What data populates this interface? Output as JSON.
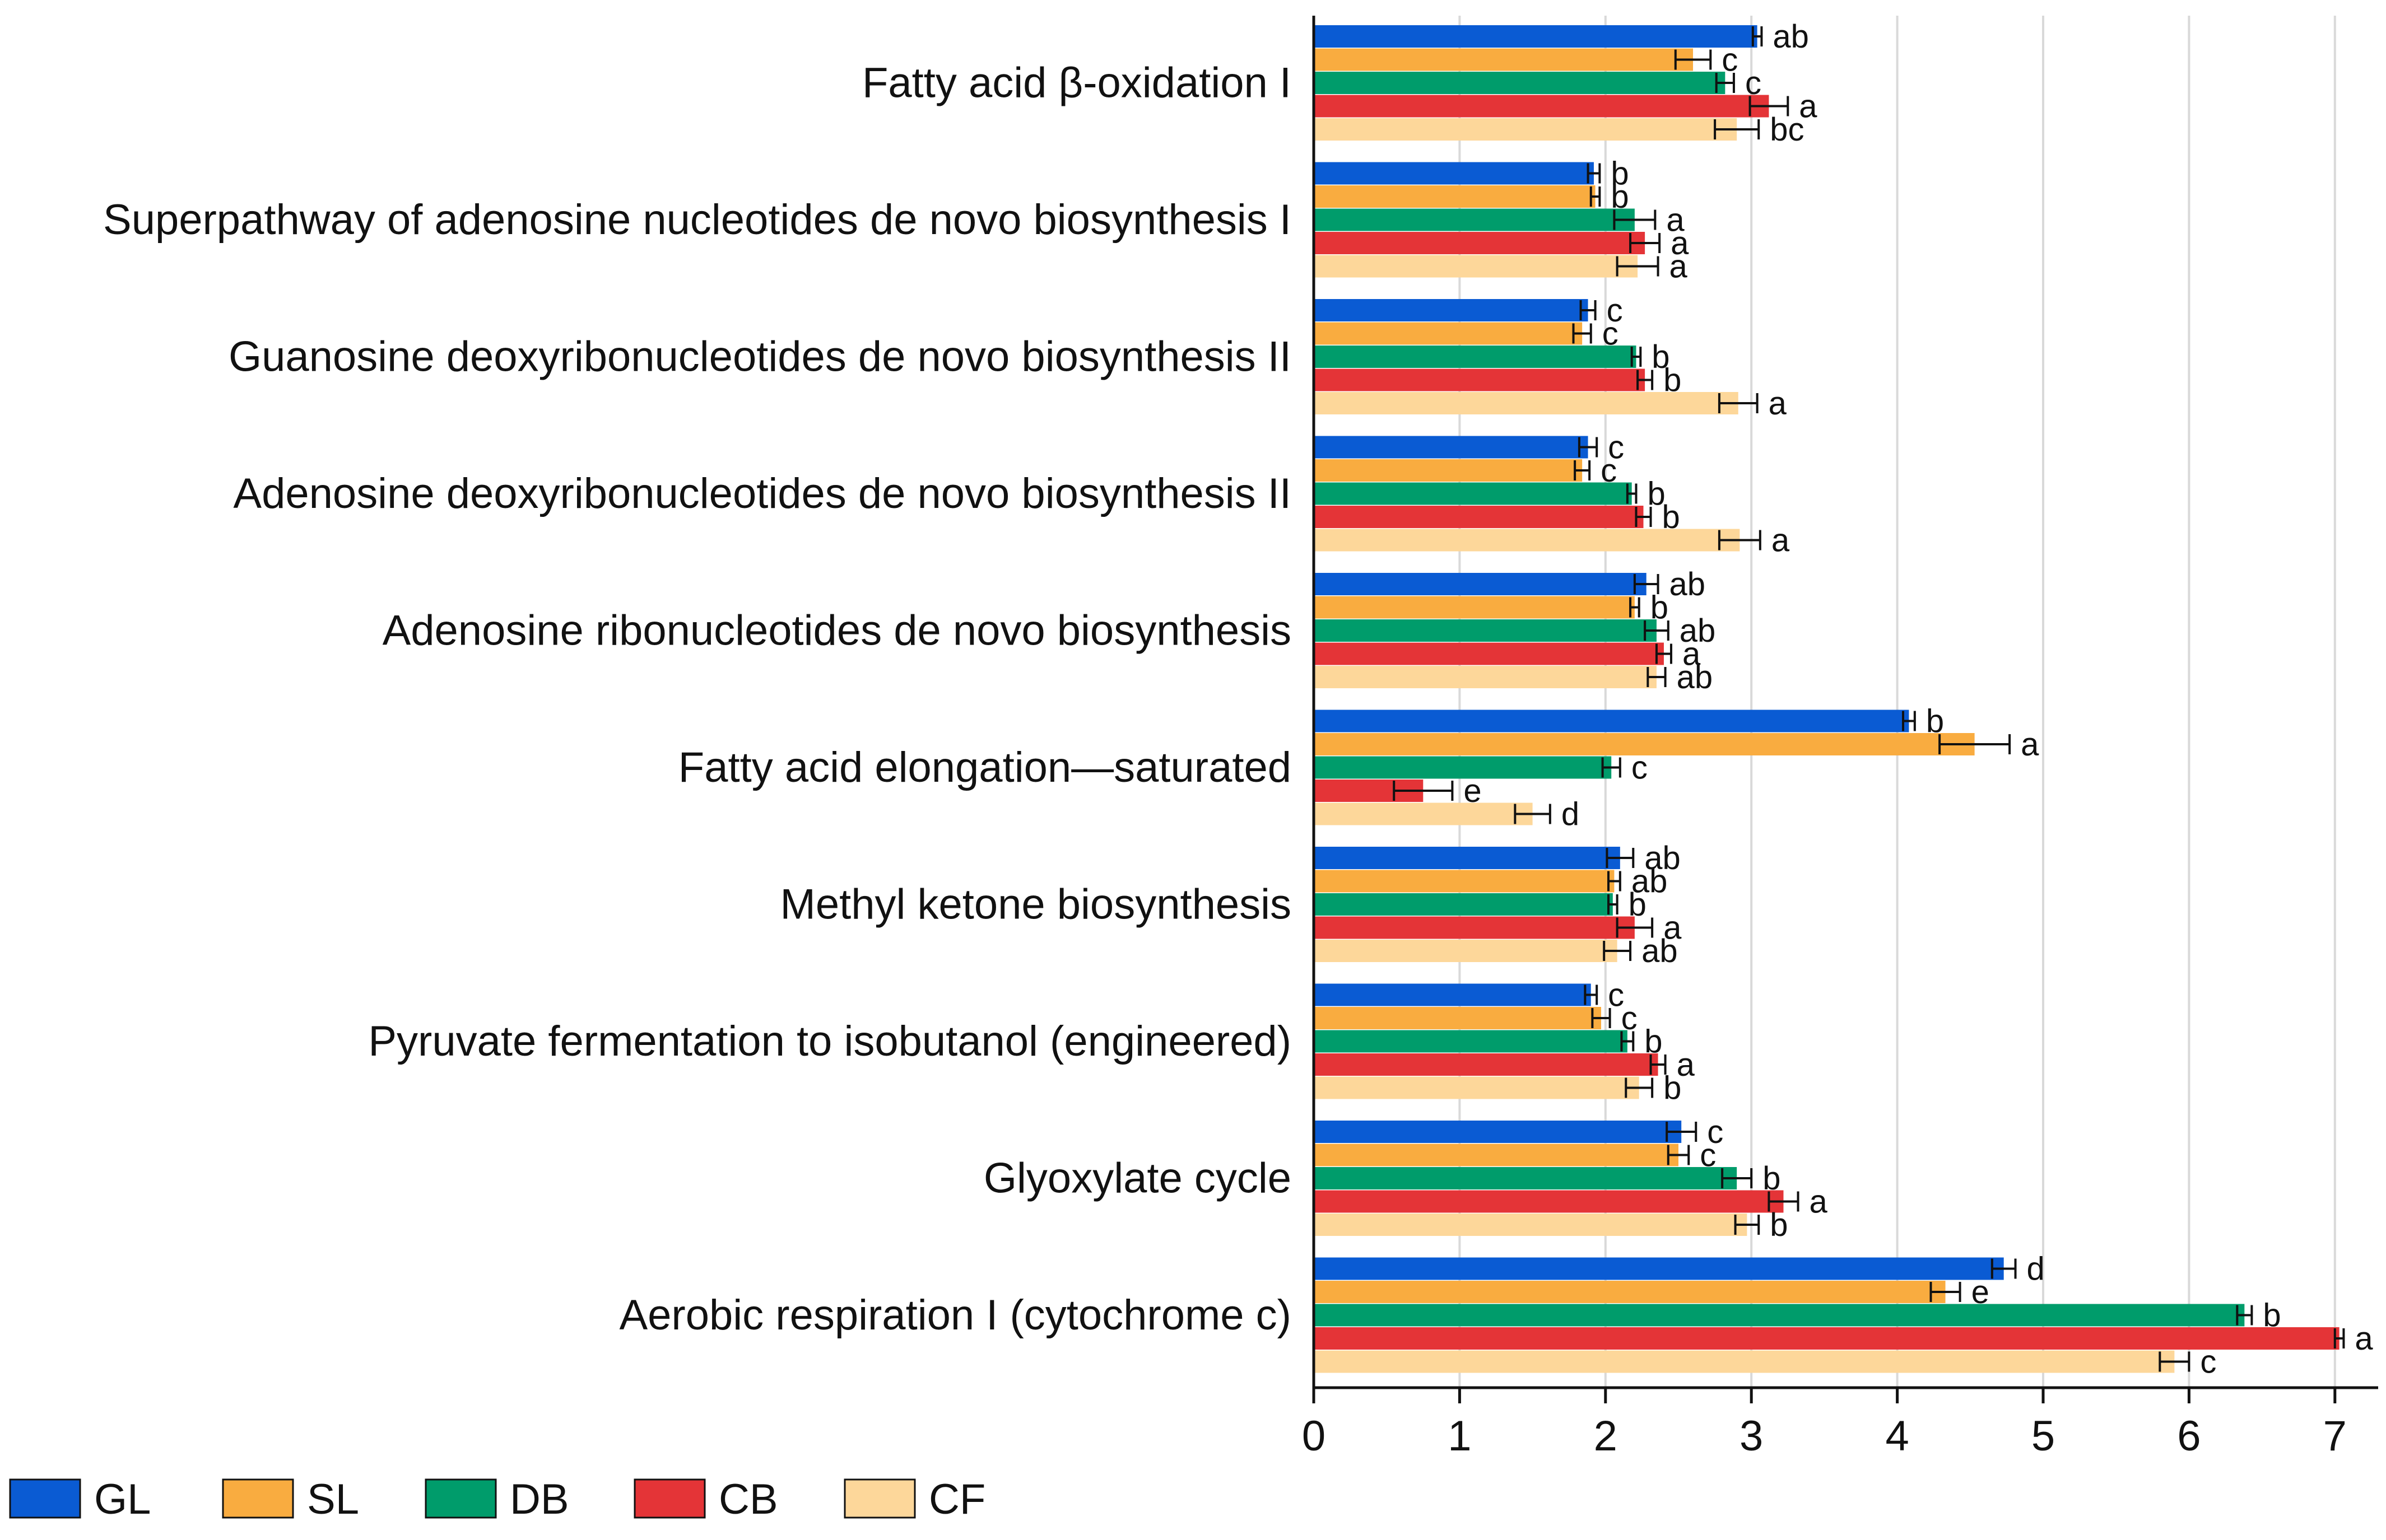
{
  "chart_data": {
    "type": "bar",
    "orientation": "horizontal",
    "grouped": true,
    "error_bars": true,
    "title": "",
    "xlabel": "",
    "ylabel": "",
    "xlim": [
      0,
      7.3
    ],
    "xticks": [
      "0",
      "1",
      "2",
      "3",
      "4",
      "5",
      "6",
      "7"
    ],
    "grid": "vertical",
    "legend_position": "bottom",
    "categories": [
      "Fatty acid β-oxidation I",
      "Superpathway of adenosine nucleotides de novo biosynthesis I",
      "Guanosine deoxyribonucleotides de novo biosynthesis II",
      "Adenosine deoxyribonucleotides de novo biosynthesis II",
      "Adenosine ribonucleotides de novo biosynthesis",
      "Fatty acid elongation—saturated",
      "Methyl ketone biosynthesis",
      "Pyruvate fermentation to isobutanol (engineered)",
      "Glyoxylate cycle",
      "Aerobic respiration I (cytochrome c)"
    ],
    "series": [
      {
        "name": "GL",
        "color": "#0a5bd3",
        "values": [
          3.04,
          1.92,
          1.88,
          1.88,
          2.28,
          4.08,
          2.1,
          1.9,
          2.52,
          4.73
        ],
        "errors": [
          0.03,
          0.04,
          0.05,
          0.06,
          0.08,
          0.04,
          0.09,
          0.04,
          0.1,
          0.08
        ],
        "labels": [
          "ab",
          "b",
          "c",
          "c",
          "ab",
          "b",
          "ab",
          "c",
          "c",
          "d"
        ]
      },
      {
        "name": "SL",
        "color": "#f9ac40",
        "values": [
          2.6,
          1.93,
          1.84,
          1.84,
          2.2,
          4.53,
          2.06,
          1.97,
          2.5,
          4.33
        ],
        "errors": [
          0.12,
          0.03,
          0.06,
          0.05,
          0.03,
          0.24,
          0.04,
          0.06,
          0.07,
          0.1
        ],
        "labels": [
          "c",
          "b",
          "c",
          "c",
          "b",
          "a",
          "ab",
          "c",
          "c",
          "e"
        ]
      },
      {
        "name": "DB",
        "color": "#009c6b",
        "values": [
          2.82,
          2.2,
          2.21,
          2.18,
          2.35,
          2.04,
          2.05,
          2.15,
          2.9,
          6.38
        ],
        "errors": [
          0.06,
          0.14,
          0.03,
          0.03,
          0.08,
          0.06,
          0.03,
          0.04,
          0.1,
          0.05
        ],
        "labels": [
          "c",
          "a",
          "b",
          "b",
          "ab",
          "c",
          "b",
          "b",
          "b",
          "b"
        ]
      },
      {
        "name": "CB",
        "color": "#e43437",
        "values": [
          3.12,
          2.27,
          2.27,
          2.26,
          2.4,
          0.75,
          2.2,
          2.36,
          3.22,
          7.03
        ],
        "errors": [
          0.13,
          0.1,
          0.05,
          0.05,
          0.05,
          0.2,
          0.12,
          0.05,
          0.1,
          0.03
        ],
        "labels": [
          "a",
          "a",
          "b",
          "b",
          "a",
          "e",
          "a",
          "a",
          "a",
          "a"
        ]
      },
      {
        "name": "CF",
        "color": "#fdd79a",
        "values": [
          2.9,
          2.22,
          2.91,
          2.92,
          2.35,
          1.5,
          2.08,
          2.23,
          2.97,
          5.9
        ],
        "errors": [
          0.15,
          0.14,
          0.13,
          0.14,
          0.06,
          0.12,
          0.09,
          0.09,
          0.08,
          0.1
        ],
        "labels": [
          "bc",
          "a",
          "a",
          "a",
          "ab",
          "d",
          "ab",
          "b",
          "b",
          "c"
        ]
      }
    ]
  }
}
